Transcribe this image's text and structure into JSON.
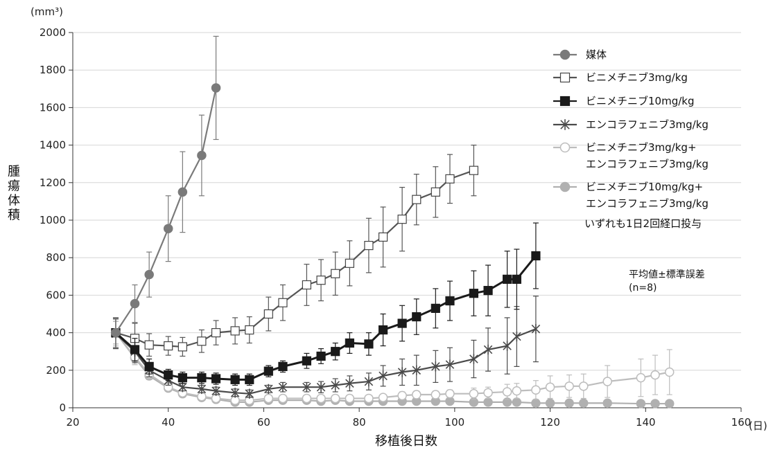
{
  "chart_data": {
    "type": "line",
    "yunit": "(mm³)",
    "xunit": "(日)",
    "ylabel": "腫瘍体積",
    "xlabel": "移植後日数",
    "xlim": [
      20,
      160
    ],
    "ylim": [
      0,
      2000
    ],
    "xticks": [
      20,
      40,
      60,
      80,
      100,
      120,
      140,
      160
    ],
    "yticks": [
      0,
      200,
      400,
      600,
      800,
      1000,
      1200,
      1400,
      1600,
      1800,
      2000
    ],
    "legend_position": "top-right",
    "note_text": "いずれも1日2回経口投与",
    "stats_text": "平均値±標準誤差",
    "n_text": "(n=8)",
    "series": [
      {
        "name": "媒体",
        "marker": "circle-filled",
        "color": "#7a7a7a",
        "fill": "#7a7a7a",
        "x": [
          29,
          33,
          36,
          40,
          43,
          47,
          50
        ],
        "y": [
          400,
          555,
          710,
          955,
          1150,
          1345,
          1705
        ],
        "err": [
          80,
          100,
          120,
          175,
          215,
          215,
          275
        ]
      },
      {
        "name": "ビニメチニブ3mg/kg",
        "marker": "square-open",
        "color": "#555555",
        "fill": "#ffffff",
        "x": [
          29,
          33,
          36,
          40,
          43,
          47,
          50,
          54,
          57,
          61,
          64,
          69,
          72,
          75,
          78,
          82,
          85,
          89,
          92,
          96,
          99,
          104
        ],
        "y": [
          400,
          370,
          335,
          330,
          325,
          355,
          400,
          410,
          415,
          500,
          560,
          655,
          680,
          715,
          770,
          865,
          910,
          1005,
          1110,
          1150,
          1220,
          1265
        ],
        "err": [
          80,
          80,
          60,
          50,
          50,
          60,
          65,
          70,
          70,
          90,
          95,
          110,
          110,
          115,
          120,
          145,
          160,
          170,
          135,
          135,
          130,
          135
        ]
      },
      {
        "name": "ビニメチニブ10mg/kg",
        "marker": "square-filled",
        "color": "#1a1a1a",
        "fill": "#1a1a1a",
        "x": [
          29,
          33,
          36,
          40,
          43,
          47,
          50,
          54,
          57,
          61,
          64,
          69,
          72,
          75,
          78,
          82,
          85,
          89,
          92,
          96,
          99,
          104,
          107,
          111,
          113,
          117
        ],
        "y": [
          400,
          310,
          220,
          175,
          160,
          160,
          155,
          150,
          150,
          195,
          220,
          250,
          275,
          300,
          345,
          340,
          415,
          450,
          485,
          530,
          570,
          610,
          625,
          685,
          685,
          810
        ],
        "err": [
          80,
          60,
          40,
          30,
          30,
          30,
          30,
          30,
          30,
          30,
          30,
          40,
          40,
          45,
          55,
          60,
          85,
          95,
          95,
          105,
          105,
          120,
          135,
          150,
          160,
          175
        ]
      },
      {
        "name": "エンコラフェニブ3mg/kg",
        "marker": "asterisk",
        "color": "#4a4a4a",
        "fill": "none",
        "x": [
          29,
          33,
          36,
          40,
          43,
          47,
          50,
          54,
          57,
          61,
          64,
          69,
          72,
          75,
          78,
          82,
          85,
          89,
          92,
          96,
          99,
          104,
          107,
          111,
          113,
          117
        ],
        "y": [
          395,
          300,
          200,
          145,
          110,
          100,
          90,
          80,
          75,
          100,
          110,
          110,
          110,
          120,
          130,
          140,
          170,
          190,
          200,
          220,
          230,
          260,
          310,
          330,
          380,
          420
        ],
        "err": [
          80,
          60,
          35,
          25,
          20,
          20,
          20,
          20,
          20,
          20,
          25,
          25,
          30,
          35,
          40,
          45,
          55,
          70,
          80,
          85,
          90,
          100,
          115,
          150,
          160,
          175
        ]
      },
      {
        "name": "ビニメチニブ3mg/kg+\nエンコラフェニブ3mg/kg",
        "marker": "circle-open",
        "color": "#bdbdbd",
        "fill": "#ffffff",
        "x": [
          29,
          33,
          36,
          40,
          43,
          47,
          50,
          54,
          57,
          61,
          64,
          69,
          72,
          75,
          78,
          82,
          85,
          89,
          92,
          96,
          99,
          104,
          107,
          111,
          113,
          117,
          120,
          124,
          127,
          132,
          139,
          142,
          145
        ],
        "y": [
          400,
          270,
          180,
          110,
          80,
          60,
          50,
          40,
          40,
          50,
          50,
          50,
          50,
          50,
          50,
          50,
          55,
          65,
          70,
          70,
          75,
          75,
          80,
          85,
          90,
          95,
          110,
          115,
          115,
          140,
          160,
          175,
          190
        ],
        "err": [
          70,
          40,
          25,
          15,
          10,
          10,
          10,
          10,
          10,
          10,
          10,
          10,
          10,
          10,
          10,
          10,
          10,
          20,
          20,
          20,
          20,
          30,
          30,
          40,
          40,
          50,
          60,
          60,
          65,
          85,
          100,
          105,
          120
        ]
      },
      {
        "name": "ビニメチニブ10mg/kg+\nエンコラフェニブ3mg/kg",
        "marker": "circle-filled",
        "color": "#b0b0b0",
        "fill": "#b0b0b0",
        "x": [
          29,
          33,
          36,
          40,
          43,
          47,
          50,
          54,
          57,
          61,
          64,
          69,
          72,
          75,
          78,
          82,
          85,
          89,
          92,
          96,
          99,
          104,
          107,
          111,
          113,
          117,
          120,
          124,
          127,
          132,
          139,
          142,
          145
        ],
        "y": [
          400,
          265,
          170,
          105,
          75,
          55,
          45,
          30,
          30,
          40,
          40,
          40,
          35,
          40,
          35,
          35,
          35,
          35,
          35,
          35,
          35,
          30,
          30,
          30,
          30,
          25,
          25,
          25,
          25,
          25,
          22,
          22,
          22
        ],
        "err": [
          60,
          35,
          20,
          15,
          10,
          8,
          8,
          8,
          8,
          8,
          8,
          8,
          8,
          8,
          8,
          8,
          8,
          8,
          8,
          8,
          8,
          8,
          8,
          8,
          8,
          8,
          8,
          8,
          8,
          8,
          8,
          8,
          8
        ]
      }
    ]
  }
}
